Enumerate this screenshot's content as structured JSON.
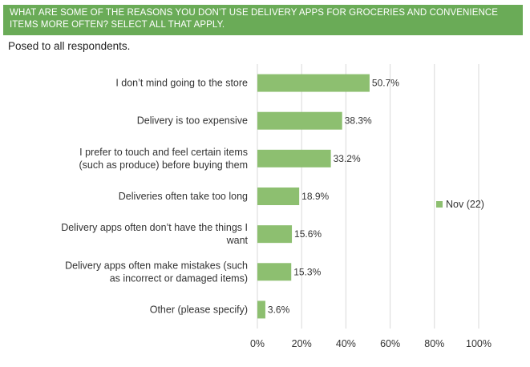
{
  "header": {
    "question": "WHAT ARE SOME OF THE REASONS YOU DON’T USE DELIVERY APPS FOR GROCERIES AND CONVENIENCE ITEMS MORE OFTEN?  SELECT ALL THAT APPLY."
  },
  "subtitle": "Posed to all respondents.",
  "colors": {
    "header_bg": "#6aab57",
    "bar": "#8dbf70",
    "grid": "#d9d9d9"
  },
  "chart_data": {
    "type": "bar",
    "orientation": "horizontal",
    "categories": [
      [
        "I don’t mind going to the store"
      ],
      [
        "Delivery is too expensive"
      ],
      [
        "I prefer to touch and feel certain items",
        "(such as produce) before buying them"
      ],
      [
        "Deliveries often take too long"
      ],
      [
        "Delivery apps often don’t have the things I",
        "want"
      ],
      [
        "Delivery apps often make mistakes (such",
        "as incorrect or damaged items)"
      ],
      [
        "Other (please specify)"
      ]
    ],
    "series": [
      {
        "name": "Nov (22)",
        "values": [
          50.7,
          38.3,
          33.2,
          18.9,
          15.6,
          15.3,
          3.6
        ],
        "labels": [
          "50.7%",
          "38.3%",
          "33.2%",
          "18.9%",
          "15.6%",
          "15.3%",
          "3.6%"
        ]
      }
    ],
    "xlim": [
      0,
      100
    ],
    "xticks": [
      0,
      20,
      40,
      60,
      80,
      100
    ],
    "xtick_labels": [
      "0%",
      "20%",
      "40%",
      "60%",
      "80%",
      "100%"
    ],
    "grid": true,
    "legend": "right"
  }
}
